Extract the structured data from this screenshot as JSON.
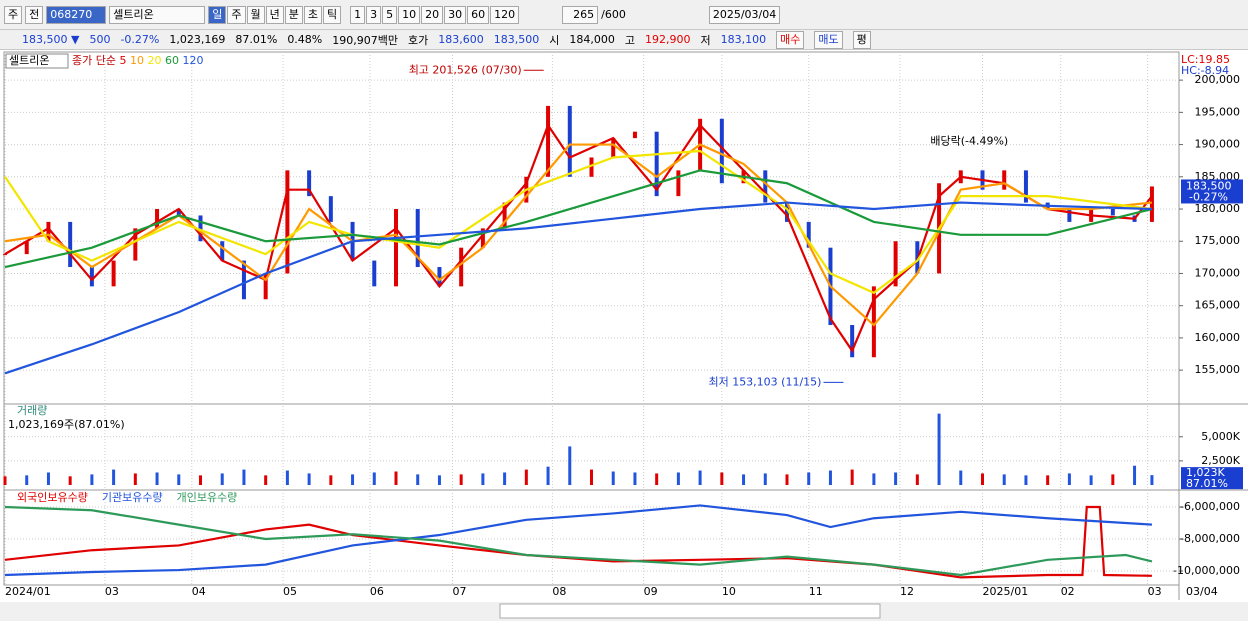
{
  "toolbar": {
    "market_label": "주",
    "prev_label": "전",
    "code": "068270",
    "name": "셀트리온",
    "periods": [
      "일",
      "주",
      "월",
      "년",
      "분",
      "초",
      "틱"
    ],
    "intervals": [
      "1",
      "3",
      "5",
      "10",
      "20",
      "30",
      "60",
      "120"
    ],
    "count": "265",
    "max_count": "/600",
    "date": "2025/03/04"
  },
  "quote": {
    "price": "183,500 ▼",
    "change": "500",
    "change_pct": "-0.27%",
    "volume": "1,023,169",
    "volume_ratio": "87.01%",
    "turnover": "0.48%",
    "amount": "190,907백만",
    "ask_label": "호가",
    "ask": "183,600",
    "bid": "183,500",
    "open_label": "시",
    "open": "184,000",
    "high_label": "고",
    "high": "192,900",
    "low_label": "저",
    "low": "183,100",
    "buy": "매수",
    "sell": "매도",
    "avg": "평"
  },
  "chart_data": [
    {
      "type": "candlestick",
      "title": "셀트리온",
      "ma_label": "종가 단순",
      "lc": "LC:19.85",
      "hc": "HC:-8.94",
      "xlim": [
        0,
        270
      ],
      "x": [
        0,
        5,
        10,
        15,
        20,
        25,
        30,
        35,
        40,
        45,
        50,
        55,
        60,
        65,
        70,
        75,
        80,
        85,
        90,
        95,
        100,
        105,
        110,
        115,
        120,
        125,
        130,
        135,
        140,
        145,
        150,
        155,
        160,
        165,
        170,
        175,
        180,
        185,
        190,
        195,
        200,
        205,
        210,
        215,
        220,
        225,
        230,
        235,
        240,
        245,
        250,
        255,
        260,
        264
      ],
      "close": [
        173000,
        175000,
        178000,
        171000,
        168000,
        172000,
        177000,
        180000,
        179000,
        175000,
        172000,
        166000,
        170000,
        186000,
        182000,
        178000,
        172000,
        168000,
        180000,
        171000,
        168000,
        174000,
        177000,
        181000,
        185000,
        196000,
        185000,
        188000,
        191000,
        192000,
        182000,
        186000,
        194000,
        184000,
        186000,
        181000,
        178000,
        174000,
        162000,
        157000,
        168000,
        175000,
        170000,
        184000,
        186000,
        183000,
        186000,
        181000,
        180000,
        178000,
        180000,
        179000,
        178000,
        183500
      ],
      "series": [
        {
          "name": "5",
          "color": "#e00000",
          "x": [
            0,
            10,
            20,
            30,
            40,
            50,
            60,
            65,
            70,
            80,
            90,
            100,
            110,
            120,
            125,
            130,
            140,
            150,
            160,
            170,
            180,
            190,
            195,
            200,
            210,
            215,
            220,
            230,
            240,
            250,
            260,
            264
          ],
          "values": [
            173000,
            177000,
            169000,
            176000,
            180000,
            172000,
            169000,
            183000,
            183000,
            172000,
            177000,
            168000,
            176000,
            184000,
            193000,
            188000,
            191000,
            183000,
            193000,
            186000,
            179000,
            163000,
            158000,
            166000,
            172000,
            182000,
            185000,
            184000,
            180000,
            179000,
            178500,
            182000
          ]
        },
        {
          "name": "10",
          "color": "#ff9900",
          "x": [
            0,
            10,
            20,
            30,
            40,
            50,
            60,
            70,
            80,
            90,
            100,
            110,
            120,
            130,
            140,
            150,
            160,
            170,
            180,
            190,
            200,
            210,
            220,
            230,
            240,
            250,
            264
          ],
          "values": [
            175000,
            176000,
            171000,
            175000,
            179000,
            174000,
            169000,
            180000,
            175000,
            176000,
            169000,
            174000,
            182000,
            190000,
            190000,
            185000,
            190000,
            187000,
            181000,
            168000,
            162000,
            170000,
            183000,
            184000,
            180000,
            180000,
            181000
          ]
        },
        {
          "name": "20",
          "color": "#f2e600",
          "x": [
            0,
            10,
            20,
            40,
            60,
            70,
            80,
            100,
            120,
            140,
            160,
            180,
            190,
            200,
            210,
            220,
            240,
            264
          ],
          "values": [
            185000,
            175000,
            172000,
            178000,
            173000,
            178000,
            176000,
            174000,
            183000,
            188000,
            189000,
            180000,
            170000,
            167000,
            172000,
            182000,
            182000,
            180000
          ]
        },
        {
          "name": "60",
          "color": "#1a9a3a",
          "x": [
            0,
            20,
            40,
            60,
            80,
            100,
            120,
            140,
            160,
            180,
            200,
            220,
            240,
            264
          ],
          "values": [
            171000,
            174000,
            179000,
            175000,
            176000,
            174500,
            178000,
            182000,
            186000,
            184000,
            178000,
            176000,
            176000,
            180000
          ]
        },
        {
          "name": "120",
          "color": "#2255dd",
          "x": [
            0,
            20,
            40,
            60,
            80,
            100,
            120,
            140,
            160,
            180,
            200,
            220,
            240,
            264
          ],
          "values": [
            154500,
            159000,
            164000,
            170000,
            175000,
            176000,
            177000,
            178500,
            180000,
            181000,
            180000,
            181000,
            180500,
            180000
          ]
        }
      ],
      "ylim": [
        149900,
        203900
      ],
      "yticks": [
        {
          "value": 155000,
          "label": "155,000"
        },
        {
          "value": 160000,
          "label": "160,000"
        },
        {
          "value": 165000,
          "label": "165,000"
        },
        {
          "value": 170000,
          "label": "170,000"
        },
        {
          "value": 175000,
          "label": "175,000"
        },
        {
          "value": 180000,
          "label": "180,000"
        },
        {
          "value": 185000,
          "label": "185,000"
        },
        {
          "value": 190000,
          "label": "190,000"
        },
        {
          "value": 195000,
          "label": "195,000"
        },
        {
          "value": 200000,
          "label": "200,000"
        }
      ],
      "annotations": [
        {
          "text": "최고 201,526 (07/30)",
          "x": 124,
          "y": 201526
        },
        {
          "text": "최저 153,103 (11/15)",
          "x": 193,
          "y": 153103
        },
        {
          "text": "배당락(-4.49%)",
          "x": 213,
          "y": 190500
        }
      ],
      "last_value": 183500,
      "last_label": "183,500",
      "last_change": "-0.27%"
    },
    {
      "type": "bar",
      "title": "거래량",
      "subtitle": "1,023,169주(87.01%)",
      "color": "#2255dd",
      "up_color": "#e00000",
      "xlim": [
        0,
        270
      ],
      "x": [
        0,
        5,
        10,
        15,
        20,
        25,
        30,
        35,
        40,
        45,
        50,
        55,
        60,
        65,
        70,
        75,
        80,
        85,
        90,
        95,
        100,
        105,
        110,
        115,
        120,
        125,
        130,
        135,
        140,
        145,
        150,
        155,
        160,
        165,
        170,
        175,
        180,
        185,
        190,
        195,
        200,
        205,
        210,
        215,
        220,
        225,
        230,
        235,
        240,
        245,
        250,
        255,
        260,
        264
      ],
      "values": [
        900,
        1000,
        1300,
        900,
        1100,
        1600,
        1200,
        1300,
        1100,
        1000,
        1200,
        1600,
        1000,
        1500,
        1200,
        1000,
        1100,
        1300,
        1400,
        1100,
        1000,
        1100,
        1200,
        1300,
        1600,
        1900,
        4000,
        1600,
        1400,
        1300,
        1200,
        1300,
        1500,
        1300,
        1100,
        1200,
        1100,
        1300,
        1500,
        1600,
        1200,
        1300,
        1100,
        7400,
        1500,
        1200,
        1100,
        1000,
        1000,
        1200,
        1000,
        1100,
        2000,
        1023
      ],
      "ylim": [
        0,
        8400
      ],
      "yticks": [
        {
          "value": 2500,
          "label": "2,500K"
        },
        {
          "value": 5000,
          "label": "5,000K"
        }
      ],
      "last_value": 1023,
      "last_label": "1,023K",
      "last_pct": "87.01%"
    },
    {
      "type": "line",
      "series": [
        {
          "name": "외국인보유수량",
          "color": "#e00000",
          "x": [
            0,
            20,
            40,
            60,
            70,
            80,
            100,
            120,
            140,
            160,
            180,
            200,
            220,
            240,
            248,
            249,
            252,
            253,
            264
          ],
          "values": [
            -9300000,
            -8700000,
            -8400000,
            -7400000,
            -7100000,
            -7750000,
            -8400000,
            -9000000,
            -9400000,
            -9300000,
            -9200000,
            -9600000,
            -10400000,
            -10250000,
            -10250000,
            -6000000,
            -6000000,
            -10250000,
            -10300000
          ]
        },
        {
          "name": "기관보유수량",
          "color": "#2255dd",
          "x": [
            0,
            20,
            40,
            60,
            80,
            100,
            120,
            140,
            160,
            180,
            190,
            200,
            220,
            240,
            264
          ],
          "values": [
            -10250000,
            -10060000,
            -9940000,
            -9600000,
            -8400000,
            -7750000,
            -6800000,
            -6400000,
            -5900000,
            -6500000,
            -7250000,
            -6700000,
            -6300000,
            -6700000,
            -7100000
          ]
        },
        {
          "name": "개인보유수량",
          "color": "#2e9a5a",
          "x": [
            0,
            20,
            40,
            60,
            80,
            100,
            120,
            140,
            160,
            180,
            200,
            220,
            240,
            258,
            264
          ],
          "values": [
            -6000000,
            -6200000,
            -7100000,
            -8000000,
            -7700000,
            -8100000,
            -9000000,
            -9300000,
            -9600000,
            -9100000,
            -9600000,
            -10250000,
            -9300000,
            -9000000,
            -9400000
          ]
        }
      ],
      "ylim": [
        -10750000,
        -5060000
      ],
      "yticks": [
        {
          "value": -6000000,
          "label": "-6,000,000"
        },
        {
          "value": -8000000,
          "label": "-8,000,000"
        },
        {
          "value": -10000000,
          "label": "-10,000,000"
        }
      ],
      "xlim": [
        0,
        270
      ],
      "xticks": [
        {
          "value": 0,
          "label": "2024/01"
        },
        {
          "value": 23,
          "label": "03"
        },
        {
          "value": 43,
          "label": "04"
        },
        {
          "value": 64,
          "label": "05"
        },
        {
          "value": 84,
          "label": "06"
        },
        {
          "value": 103,
          "label": "07"
        },
        {
          "value": 126,
          "label": "08"
        },
        {
          "value": 147,
          "label": "09"
        },
        {
          "value": 165,
          "label": "10"
        },
        {
          "value": 185,
          "label": "11"
        },
        {
          "value": 206,
          "label": "12"
        },
        {
          "value": 225,
          "label": "2025/01"
        },
        {
          "value": 243,
          "label": "02"
        },
        {
          "value": 263,
          "label": "03"
        }
      ],
      "x_end_label": "03/04"
    }
  ]
}
